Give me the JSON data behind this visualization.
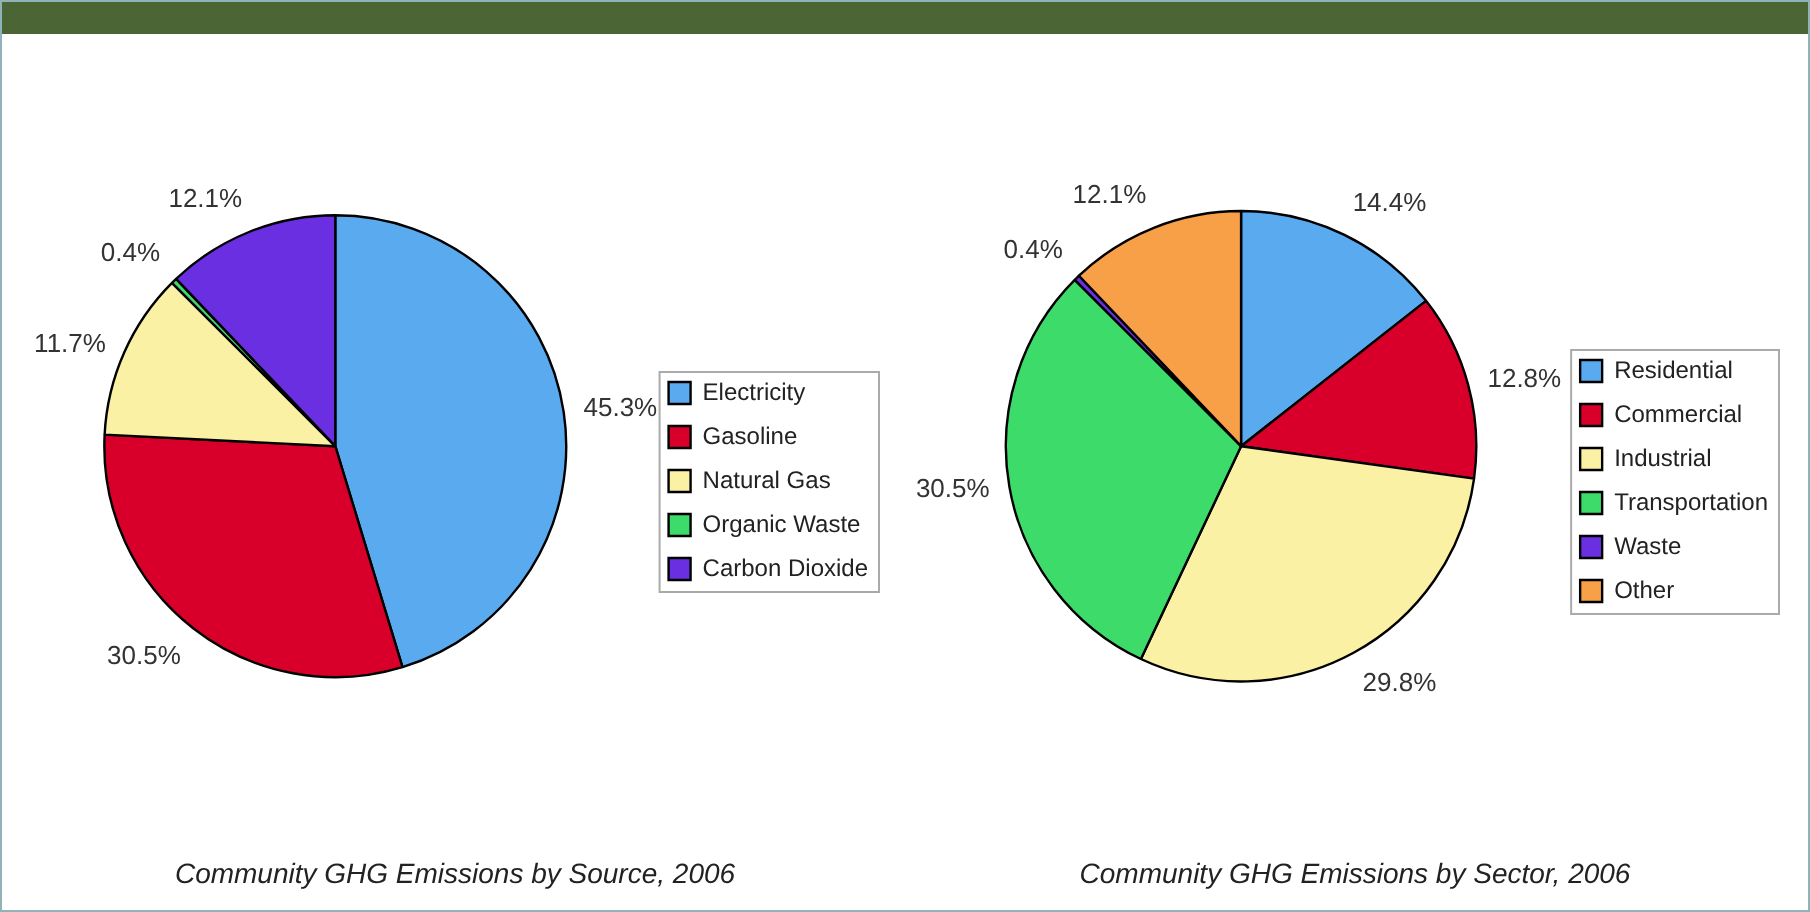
{
  "chart_data": [
    {
      "type": "pie",
      "title": "Community GHG Emissions by Source, 2006",
      "categories": [
        "Electricity",
        "Gasoline",
        "Natural Gas",
        "Organic Waste",
        "Carbon Dioxide"
      ],
      "values": [
        45.3,
        30.5,
        11.7,
        0.4,
        12.1
      ],
      "colors": [
        "#5aaaf0",
        "#d8002a",
        "#fbf1a4",
        "#3ddc6a",
        "#6a2fe0"
      ],
      "value_labels": [
        "45.3%",
        "30.5%",
        "11.7%",
        "0.4%",
        "12.1%"
      ],
      "legend": "right"
    },
    {
      "type": "pie",
      "title": "Community GHG Emissions by Sector, 2006",
      "categories": [
        "Residential",
        "Commercial",
        "Industrial",
        "Transportation",
        "Waste",
        "Other"
      ],
      "values": [
        14.4,
        12.8,
        29.8,
        30.5,
        0.4,
        12.1
      ],
      "colors": [
        "#5aaaf0",
        "#d8002a",
        "#fbf1a4",
        "#3ddc6a",
        "#6a2fe0",
        "#f8a048"
      ],
      "value_labels": [
        "14.4%",
        "12.8%",
        "29.8%",
        "30.5%",
        "0.4%",
        "12.1%"
      ],
      "legend": "right"
    }
  ]
}
